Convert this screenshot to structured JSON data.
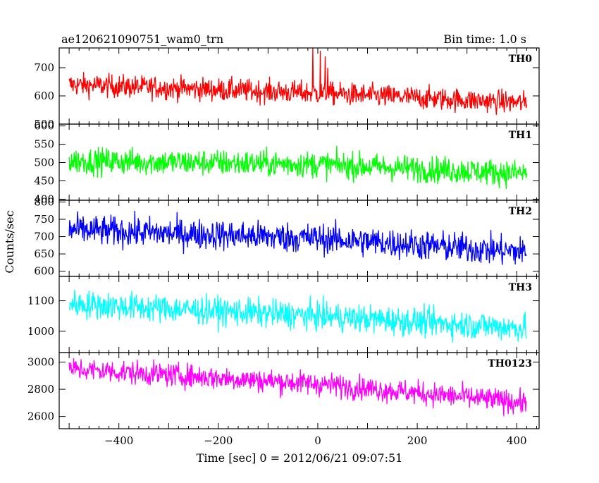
{
  "header": {
    "title": "ae120621090751_wam0_trn",
    "bin_time": "Bin time: 1.0 s"
  },
  "chart_data": {
    "type": "line",
    "xlabel": "Time [sec] 0 = 2012/06/21 09:07:51",
    "ylabel": "Counts/sec",
    "xlim": [
      -520,
      445
    ],
    "x_ticks": [
      -400,
      -200,
      0,
      200,
      400
    ],
    "x_tick_labels": [
      "−400",
      "−200",
      "0",
      "200",
      "400"
    ],
    "x_start": -500,
    "x_end": 420,
    "bin_time_s": 1.0,
    "grid": false,
    "panels": [
      {
        "name": "TH0",
        "color": "#ff0000",
        "ylim": [
          500,
          770
        ],
        "y_ticks": [
          500,
          600,
          700
        ],
        "y_tick_labels": [
          "500",
          "600",
          "700"
        ],
        "trend": [
          [
            -500,
            640
          ],
          [
            0,
            610
          ],
          [
            420,
            575
          ]
        ],
        "spread": 28,
        "spikes": [
          [
            -10,
            770
          ],
          [
            5,
            760
          ],
          [
            15,
            740
          ],
          [
            20,
            700
          ]
        ]
      },
      {
        "name": "TH1",
        "color": "#00ff00",
        "ylim": [
          397,
          605
        ],
        "y_ticks": [
          400,
          450,
          500,
          550,
          600
        ],
        "y_tick_labels": [
          "400",
          "450",
          "500",
          "550",
          "600"
        ],
        "trend": [
          [
            -500,
            505
          ],
          [
            0,
            495
          ],
          [
            420,
            470
          ]
        ],
        "spread": 25,
        "spikes": []
      },
      {
        "name": "TH2",
        "color": "#0000ff",
        "ylim": [
          585,
          805
        ],
        "y_ticks": [
          600,
          650,
          700,
          750,
          800
        ],
        "y_tick_labels": [
          "600",
          "650",
          "700",
          "750",
          "800"
        ],
        "trend": [
          [
            -500,
            720
          ],
          [
            0,
            695
          ],
          [
            420,
            655
          ]
        ],
        "spread": 30,
        "spikes": []
      },
      {
        "name": "TH3",
        "color": "#00ffff",
        "ylim": [
          930,
          1180
        ],
        "y_ticks": [
          1000,
          1100
        ],
        "y_tick_labels": [
          "1000",
          "1100"
        ],
        "trend": [
          [
            -500,
            1090
          ],
          [
            0,
            1050
          ],
          [
            420,
            1010
          ]
        ],
        "spread": 32,
        "spikes": []
      },
      {
        "name": "TH0123",
        "color": "#ff00ff",
        "ylim": [
          2510,
          3070
        ],
        "y_ticks": [
          2600,
          2800,
          3000
        ],
        "y_tick_labels": [
          "2600",
          "2800",
          "3000"
        ],
        "trend": [
          [
            -500,
            2950
          ],
          [
            0,
            2840
          ],
          [
            420,
            2700
          ]
        ],
        "spread": 60,
        "spikes": []
      }
    ]
  }
}
